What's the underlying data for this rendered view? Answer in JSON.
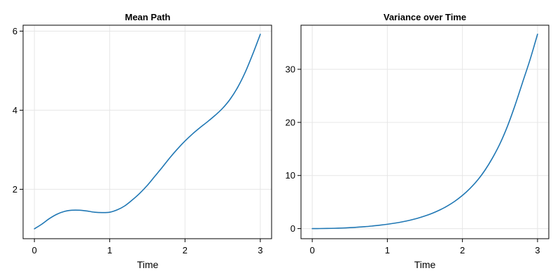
{
  "chart_data": [
    {
      "type": "line",
      "title": "Mean Path",
      "xlabel": "Time",
      "ylabel": "",
      "xlim": [
        -0.15,
        3.15
      ],
      "ylim": [
        0.75,
        6.15
      ],
      "xticks": [
        0,
        1,
        2,
        3
      ],
      "yticks": [
        2,
        4,
        6
      ],
      "grid": true,
      "legend": "none",
      "color": "#1f77b4",
      "series": [
        {
          "x": [
            0,
            0.1,
            0.2,
            0.3,
            0.4,
            0.5,
            0.6,
            0.7,
            0.8,
            0.9,
            1.0,
            1.1,
            1.2,
            1.3,
            1.4,
            1.5,
            1.6,
            1.7,
            1.8,
            1.9,
            2.0,
            2.1,
            2.2,
            2.3,
            2.4,
            2.5,
            2.6,
            2.7,
            2.8,
            2.9,
            3.0
          ],
          "values": [
            1.0,
            1.12,
            1.26,
            1.37,
            1.44,
            1.47,
            1.47,
            1.45,
            1.42,
            1.41,
            1.42,
            1.48,
            1.58,
            1.73,
            1.9,
            2.1,
            2.33,
            2.56,
            2.8,
            3.02,
            3.22,
            3.4,
            3.56,
            3.71,
            3.87,
            4.05,
            4.28,
            4.58,
            4.96,
            5.42,
            5.92
          ]
        }
      ]
    },
    {
      "type": "line",
      "title": "Variance over Time",
      "xlabel": "Time",
      "ylabel": "",
      "xlim": [
        -0.15,
        3.15
      ],
      "ylim": [
        -1.9,
        38.3
      ],
      "xticks": [
        0,
        1,
        2,
        3
      ],
      "yticks": [
        0,
        10,
        20,
        30
      ],
      "grid": true,
      "legend": "none",
      "color": "#1f77b4",
      "series": [
        {
          "x": [
            0,
            0.1,
            0.2,
            0.3,
            0.4,
            0.5,
            0.6,
            0.7,
            0.8,
            0.9,
            1.0,
            1.1,
            1.2,
            1.3,
            1.4,
            1.5,
            1.6,
            1.7,
            1.8,
            1.9,
            2.0,
            2.1,
            2.2,
            2.3,
            2.4,
            2.5,
            2.6,
            2.7,
            2.8,
            2.9,
            3.0
          ],
          "values": [
            0.0,
            0.01,
            0.03,
            0.06,
            0.11,
            0.18,
            0.26,
            0.36,
            0.49,
            0.64,
            0.82,
            1.03,
            1.28,
            1.58,
            1.94,
            2.38,
            2.9,
            3.52,
            4.27,
            5.17,
            6.25,
            7.55,
            9.1,
            11.0,
            13.3,
            16.0,
            19.3,
            23.2,
            27.5,
            31.8,
            36.6
          ]
        }
      ]
    }
  ]
}
